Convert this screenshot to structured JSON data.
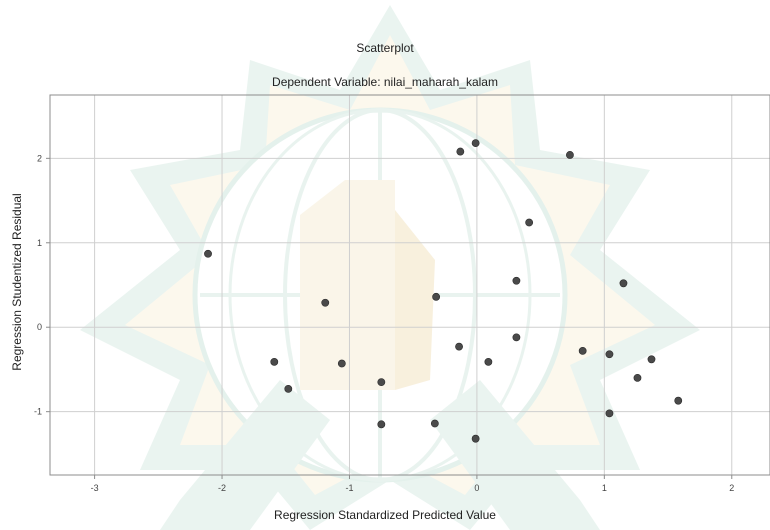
{
  "chart_data": {
    "type": "scatter",
    "title": "Scatterplot",
    "subtitle": "Dependent Variable: nilai_maharah_kalam",
    "xlabel": "Regression Standardized Predicted Value",
    "ylabel": "Regression Studentized Residual",
    "xlim": [
      -3.35,
      2.3
    ],
    "ylim": [
      -1.75,
      2.75
    ],
    "xticks": [
      -3,
      -2,
      -1,
      0,
      1,
      2
    ],
    "yticks": [
      -1,
      0,
      1,
      2
    ],
    "grid": true,
    "point_color": "#4a4a4a",
    "points": [
      {
        "x": -2.11,
        "y": 0.87
      },
      {
        "x": -1.19,
        "y": 0.29
      },
      {
        "x": -1.59,
        "y": -0.41
      },
      {
        "x": -1.48,
        "y": -0.73
      },
      {
        "x": -1.06,
        "y": -0.43
      },
      {
        "x": -0.75,
        "y": -0.65
      },
      {
        "x": -0.75,
        "y": -1.15
      },
      {
        "x": -0.32,
        "y": 0.36
      },
      {
        "x": -0.33,
        "y": -1.14
      },
      {
        "x": -0.13,
        "y": 2.08
      },
      {
        "x": -0.01,
        "y": 2.18
      },
      {
        "x": -0.14,
        "y": -0.23
      },
      {
        "x": 0.09,
        "y": -0.41
      },
      {
        "x": 0.31,
        "y": 0.55
      },
      {
        "x": 0.31,
        "y": -0.12
      },
      {
        "x": -0.01,
        "y": -1.32
      },
      {
        "x": 0.41,
        "y": 1.24
      },
      {
        "x": 0.73,
        "y": 2.04
      },
      {
        "x": 0.83,
        "y": -0.28
      },
      {
        "x": 1.04,
        "y": -0.32
      },
      {
        "x": 1.15,
        "y": 0.52
      },
      {
        "x": 1.37,
        "y": -0.38
      },
      {
        "x": 1.26,
        "y": -0.6
      },
      {
        "x": 1.04,
        "y": -1.02
      },
      {
        "x": 1.58,
        "y": -0.87
      }
    ]
  }
}
